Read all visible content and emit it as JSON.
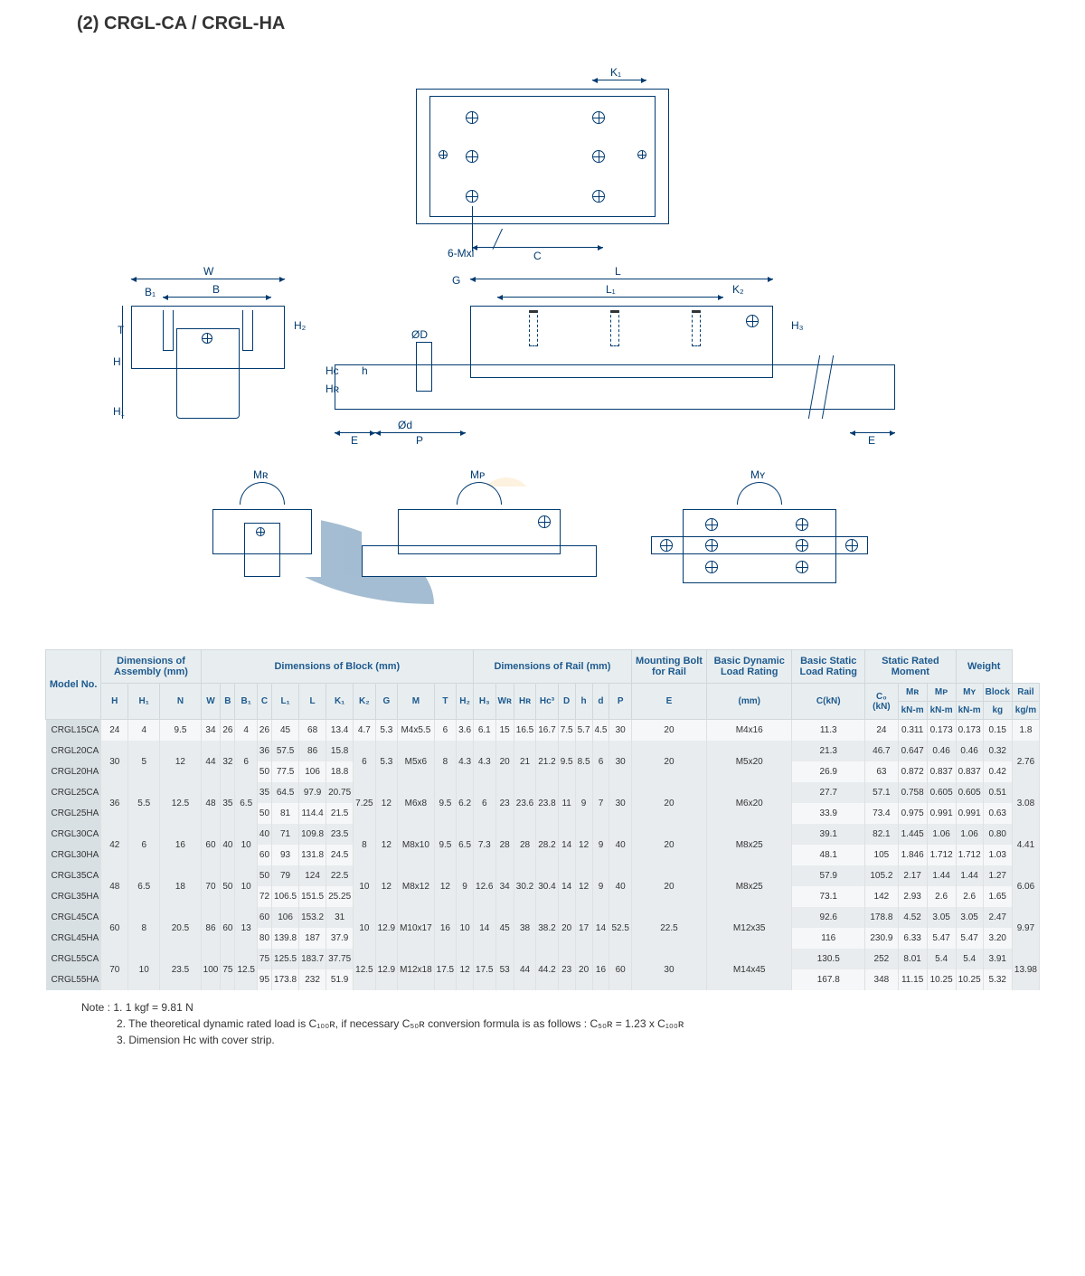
{
  "title": "(2) CRGL-CA / CRGL-HA",
  "diagram": {
    "colors": {
      "line": "#003a70",
      "bg": "#ffffff",
      "watermark_blue": "#1e5a8e",
      "watermark_light": "#b8d4e8",
      "watermark_orange": "#f5c97a"
    },
    "labels": {
      "top_view": {
        "K1": "K₁",
        "C": "C",
        "bolt": "6-Mxl"
      },
      "front_view": {
        "W": "W",
        "B1": "B₁",
        "B": "B",
        "H": "H",
        "H1": "H₁",
        "T": "T",
        "H2": "H₂"
      },
      "side_view": {
        "G": "G",
        "L": "L",
        "L1": "L₁",
        "K2": "K₂",
        "H3": "H₃",
        "OD": "ØD",
        "Hc": "Hc",
        "HR": "Hʀ",
        "h": "h",
        "Od": "Ød",
        "E": "E",
        "P": "P"
      },
      "moments": {
        "MR": "Mʀ",
        "MP": "Mᴘ",
        "MY": "Mʏ"
      }
    }
  },
  "table": {
    "header_groups": [
      {
        "label": "Model No.",
        "span": 1,
        "rows": 3
      },
      {
        "label": "Dimensions of Assembly (mm)",
        "span": 3
      },
      {
        "label": "Dimensions of Block (mm)",
        "span": 12
      },
      {
        "label": "Dimensions of Rail (mm)",
        "span": 8
      },
      {
        "label": "Mounting Bolt for Rail",
        "span": 1
      },
      {
        "label": "Basic Dynamic Load Rating",
        "span": 1
      },
      {
        "label": "Basic Static Load Rating",
        "span": 1
      },
      {
        "label": "Static Rated Moment",
        "span": 3
      },
      {
        "label": "Weight",
        "span": 2
      }
    ],
    "sub_cols": [
      "H",
      "H₁",
      "N",
      "W",
      "B",
      "B₁",
      "C",
      "L₁",
      "L",
      "K₁",
      "K₂",
      "G",
      "M",
      "T",
      "H₂",
      "H₃",
      "Wʀ",
      "Hʀ",
      "Hc³",
      "D",
      "h",
      "d",
      "P",
      "E",
      "(mm)",
      "C(kN)",
      "C₀ (kN)",
      "Mʀ",
      "Mᴘ",
      "Mʏ",
      "Block",
      "Rail"
    ],
    "sub_units": [
      "",
      "",
      "",
      "",
      "",
      "",
      "",
      "",
      "",
      "",
      "",
      "",
      "",
      "",
      "",
      "",
      "",
      "",
      "",
      "",
      "",
      "",
      "",
      "",
      "",
      "",
      "",
      "kN-m",
      "kN-m",
      "kN-m",
      "kg",
      "kg/m"
    ],
    "rows": [
      {
        "model": "CRGL15CA",
        "v": [
          "24",
          "4",
          "9.5",
          "34",
          "26",
          "4",
          "26",
          "45",
          "68",
          "13.4",
          "4.7",
          "5.3",
          "M4x5.5",
          "6",
          "3.6",
          "6.1",
          "15",
          "16.5",
          "16.7",
          "7.5",
          "5.7",
          "4.5",
          "30",
          "20",
          "M4x16",
          "11.3",
          "24",
          "0.311",
          "0.173",
          "0.173",
          "0.15",
          "1.8"
        ],
        "merge": {}
      },
      {
        "model": "CRGL20CA",
        "v": [
          "30",
          "5",
          "12",
          "44",
          "32",
          "6",
          "36",
          "57.5",
          "86",
          "15.8",
          "6",
          "5.3",
          "M5x6",
          "8",
          "4.3",
          "4.3",
          "20",
          "21",
          "21.2",
          "9.5",
          "8.5",
          "6",
          "30",
          "20",
          "M5x20",
          "21.3",
          "46.7",
          "0.647",
          "0.46",
          "0.46",
          "0.32",
          "2.76"
        ],
        "merge": {
          "H": 2,
          "H1": 2,
          "N": 2,
          "W": 2,
          "B": 2,
          "B1": 2,
          "K2": 2,
          "G": 2,
          "M": 2,
          "T": 2,
          "H2": 2,
          "H3": 2,
          "WR": 2,
          "HR": 2,
          "Hc": 2,
          "D": 2,
          "h": 2,
          "d": 2,
          "P": 2,
          "E": 2,
          "bolt": 2,
          "rail": 2
        }
      },
      {
        "model": "CRGL20HA",
        "v": [
          "",
          "",
          "",
          "",
          "",
          "",
          "50",
          "77.5",
          "106",
          "18.8",
          "",
          "",
          "",
          "",
          "",
          "",
          "",
          "",
          "",
          "",
          "",
          "",
          "",
          "",
          "",
          "26.9",
          "63",
          "0.872",
          "0.837",
          "0.837",
          "0.42",
          ""
        ],
        "merge": {}
      },
      {
        "model": "CRGL25CA",
        "v": [
          "36",
          "5.5",
          "12.5",
          "48",
          "35",
          "6.5",
          "35",
          "64.5",
          "97.9",
          "20.75",
          "7.25",
          "12",
          "M6x8",
          "9.5",
          "6.2",
          "6",
          "23",
          "23.6",
          "23.8",
          "11",
          "9",
          "7",
          "30",
          "20",
          "M6x20",
          "27.7",
          "57.1",
          "0.758",
          "0.605",
          "0.605",
          "0.51",
          "3.08"
        ],
        "merge": {
          "H": 2,
          "H1": 2,
          "N": 2,
          "W": 2,
          "B": 2,
          "B1": 2,
          "K2": 2,
          "G": 2,
          "M": 2,
          "T": 2,
          "H2": 2,
          "H3": 2,
          "WR": 2,
          "HR": 2,
          "Hc": 2,
          "D": 2,
          "h": 2,
          "d": 2,
          "P": 2,
          "E": 2,
          "bolt": 2,
          "rail": 2
        }
      },
      {
        "model": "CRGL25HA",
        "v": [
          "",
          "",
          "",
          "",
          "",
          "",
          "50",
          "81",
          "114.4",
          "21.5",
          "",
          "",
          "",
          "",
          "",
          "",
          "",
          "",
          "",
          "",
          "",
          "",
          "",
          "",
          "",
          "33.9",
          "73.4",
          "0.975",
          "0.991",
          "0.991",
          "0.63",
          ""
        ],
        "merge": {}
      },
      {
        "model": "CRGL30CA",
        "v": [
          "42",
          "6",
          "16",
          "60",
          "40",
          "10",
          "40",
          "71",
          "109.8",
          "23.5",
          "8",
          "12",
          "M8x10",
          "9.5",
          "6.5",
          "7.3",
          "28",
          "28",
          "28.2",
          "14",
          "12",
          "9",
          "40",
          "20",
          "M8x25",
          "39.1",
          "82.1",
          "1.445",
          "1.06",
          "1.06",
          "0.80",
          "4.41"
        ],
        "merge": {
          "H": 2,
          "H1": 2,
          "N": 2,
          "W": 2,
          "B": 2,
          "B1": 2,
          "K2": 2,
          "G": 2,
          "M": 2,
          "T": 2,
          "H2": 2,
          "H3": 2,
          "WR": 2,
          "HR": 2,
          "Hc": 2,
          "D": 2,
          "h": 2,
          "d": 2,
          "P": 2,
          "E": 2,
          "bolt": 2,
          "rail": 2
        }
      },
      {
        "model": "CRGL30HA",
        "v": [
          "",
          "",
          "",
          "",
          "",
          "",
          "60",
          "93",
          "131.8",
          "24.5",
          "",
          "",
          "",
          "",
          "",
          "",
          "",
          "",
          "",
          "",
          "",
          "",
          "",
          "",
          "",
          "48.1",
          "105",
          "1.846",
          "1.712",
          "1.712",
          "1.03",
          ""
        ],
        "merge": {}
      },
      {
        "model": "CRGL35CA",
        "v": [
          "48",
          "6.5",
          "18",
          "70",
          "50",
          "10",
          "50",
          "79",
          "124",
          "22.5",
          "10",
          "12",
          "M8x12",
          "12",
          "9",
          "12.6",
          "34",
          "30.2",
          "30.4",
          "14",
          "12",
          "9",
          "40",
          "20",
          "M8x25",
          "57.9",
          "105.2",
          "2.17",
          "1.44",
          "1.44",
          "1.27",
          "6.06"
        ],
        "merge": {
          "H": 2,
          "H1": 2,
          "N": 2,
          "W": 2,
          "B": 2,
          "B1": 2,
          "K2": 2,
          "G": 2,
          "M": 2,
          "T": 2,
          "H2": 2,
          "H3": 2,
          "WR": 2,
          "HR": 2,
          "Hc": 2,
          "D": 2,
          "h": 2,
          "d": 2,
          "P": 2,
          "E": 2,
          "bolt": 2,
          "rail": 2
        }
      },
      {
        "model": "CRGL35HA",
        "v": [
          "",
          "",
          "",
          "",
          "",
          "",
          "72",
          "106.5",
          "151.5",
          "25.25",
          "",
          "",
          "",
          "",
          "",
          "",
          "",
          "",
          "",
          "",
          "",
          "",
          "",
          "",
          "",
          "73.1",
          "142",
          "2.93",
          "2.6",
          "2.6",
          "1.65",
          ""
        ],
        "merge": {}
      },
      {
        "model": "CRGL45CA",
        "v": [
          "60",
          "8",
          "20.5",
          "86",
          "60",
          "13",
          "60",
          "106",
          "153.2",
          "31",
          "10",
          "12.9",
          "M10x17",
          "16",
          "10",
          "14",
          "45",
          "38",
          "38.2",
          "20",
          "17",
          "14",
          "52.5",
          "22.5",
          "M12x35",
          "92.6",
          "178.8",
          "4.52",
          "3.05",
          "3.05",
          "2.47",
          "9.97"
        ],
        "merge": {
          "H": 2,
          "H1": 2,
          "N": 2,
          "W": 2,
          "B": 2,
          "B1": 2,
          "K2": 2,
          "G": 2,
          "M": 2,
          "T": 2,
          "H2": 2,
          "H3": 2,
          "WR": 2,
          "HR": 2,
          "Hc": 2,
          "D": 2,
          "h": 2,
          "d": 2,
          "P": 2,
          "E": 2,
          "bolt": 2,
          "rail": 2
        }
      },
      {
        "model": "CRGL45HA",
        "v": [
          "",
          "",
          "",
          "",
          "",
          "",
          "80",
          "139.8",
          "187",
          "37.9",
          "",
          "",
          "",
          "",
          "",
          "",
          "",
          "",
          "",
          "",
          "",
          "",
          "",
          "",
          "",
          "116",
          "230.9",
          "6.33",
          "5.47",
          "5.47",
          "3.20",
          ""
        ],
        "merge": {}
      },
      {
        "model": "CRGL55CA",
        "v": [
          "70",
          "10",
          "23.5",
          "100",
          "75",
          "12.5",
          "75",
          "125.5",
          "183.7",
          "37.75",
          "12.5",
          "12.9",
          "M12x18",
          "17.5",
          "12",
          "17.5",
          "53",
          "44",
          "44.2",
          "23",
          "20",
          "16",
          "60",
          "30",
          "M14x45",
          "130.5",
          "252",
          "8.01",
          "5.4",
          "5.4",
          "3.91",
          "13.98"
        ],
        "merge": {
          "H": 2,
          "H1": 2,
          "N": 2,
          "W": 2,
          "B": 2,
          "B1": 2,
          "K2": 2,
          "G": 2,
          "M": 2,
          "T": 2,
          "H2": 2,
          "H3": 2,
          "WR": 2,
          "HR": 2,
          "Hc": 2,
          "D": 2,
          "h": 2,
          "d": 2,
          "P": 2,
          "E": 2,
          "bolt": 2,
          "rail": 2
        }
      },
      {
        "model": "CRGL55HA",
        "v": [
          "",
          "",
          "",
          "",
          "",
          "",
          "95",
          "173.8",
          "232",
          "51.9",
          "",
          "",
          "",
          "",
          "",
          "",
          "",
          "",
          "",
          "",
          "",
          "",
          "",
          "",
          "",
          "167.8",
          "348",
          "11.15",
          "10.25",
          "10.25",
          "5.32",
          ""
        ],
        "merge": {}
      }
    ]
  },
  "notes": [
    "Note : 1. 1 kgf = 9.81 N",
    "2. The theoretical dynamic rated load is C₁₀₀ʀ, if necessary C₅₀ʀ conversion formula is as follows : C₅₀ʀ = 1.23 x C₁₀₀ʀ",
    "3. Dimension Hc with cover strip."
  ]
}
